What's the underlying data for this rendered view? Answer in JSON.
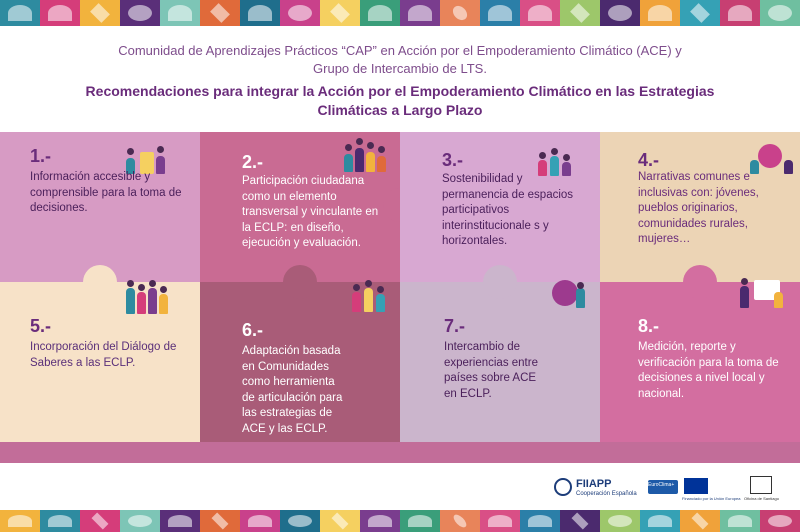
{
  "header": {
    "subtitle_line1": "Comunidad de Aprendizajes Prácticos “CAP” en Acción por el Empoderamiento Climático (ACE) y",
    "subtitle_line2": "Grupo de Intercambio de LTS.",
    "title_line1": "Recomendaciones para integrar la Acción por el Empoderamiento Climático en las Estrategias",
    "title_line2": "Climáticas a Largo Plazo"
  },
  "colors": {
    "title_purple": "#6a2c7b",
    "subtitle_purple": "#7e4d8c",
    "tile1": "#d79bc4",
    "tile2": "#c96b93",
    "tile3": "#d8a8d2",
    "tile4": "#ecd4b5",
    "tile5": "#f7e2c8",
    "tile6": "#a95c78",
    "tile7": "#cbb5cc",
    "tile8": "#d36ea0",
    "bottom_row_band": "#c26d99"
  },
  "tiles": [
    {
      "number": "1.-",
      "text": "Información accesible y comprensible para la toma de decisiones."
    },
    {
      "number": "2.-",
      "text": "Participación ciudadana como un elemento transversal y vinculante en la ECLP: en diseño, ejecución y evaluación."
    },
    {
      "number": "3.-",
      "text": "Sostenibilidad y permanencia de espacios participativos interinstitucionale s y horizontales."
    },
    {
      "number": "4.-",
      "text": "Narrativas comunes e inclusivas con: jóvenes, pueblos originarios, comunidades rurales, mujeres…"
    },
    {
      "number": "5.-",
      "text": "Incorporación del Diálogo de Saberes a las ECLP."
    },
    {
      "number": "6.-",
      "text": "Adaptación basada en Comunidades como herramienta de articulación para las estrategias de ACE y las ECLP."
    },
    {
      "number": "7.-",
      "text": "Intercambio de experiencias entre países sobre ACE en ECLP."
    },
    {
      "number": "8.-",
      "text": "Medición, reporte y verificación para la toma de decisiones a nivel local y nacional."
    }
  ],
  "logos": {
    "fiiapp": "FIIAPP",
    "fiiapp_sub": "Cooperación Española",
    "euroclima": "EuroClima+",
    "eu_caption": "Financiado por la Unión Europea",
    "unesco_caption": "Oficina de Santiago"
  }
}
